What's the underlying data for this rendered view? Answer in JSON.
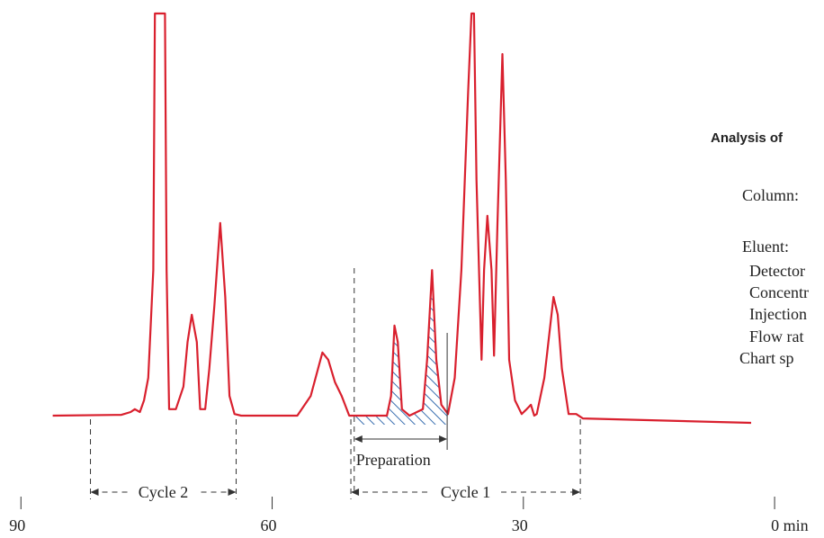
{
  "chart_data": {
    "type": "line",
    "color": "#d9202e",
    "xlim": [
      92.5,
      -5.9
    ],
    "ylim": [
      0,
      100
    ],
    "xticks": [
      90,
      60,
      30,
      {
        "value": 0,
        "label": "0 min"
      }
    ],
    "x": [
      86.2,
      78.0,
      76.9,
      76.4,
      75.8,
      75.3,
      74.8,
      74.2,
      74.0,
      72.8,
      72.6,
      72.3,
      71.5,
      70.6,
      70.1,
      69.6,
      69.0,
      68.6,
      68.0,
      67.5,
      66.9,
      66.2,
      65.6,
      65.1,
      64.5,
      63.7,
      57.0,
      55.4,
      54.0,
      53.3,
      52.5,
      51.7,
      50.8,
      46.3,
      45.8,
      45.4,
      45.0,
      44.5,
      43.6,
      42.0,
      41.5,
      40.9,
      40.4,
      39.8,
      39.0,
      38.2,
      37.4,
      36.6,
      36.2,
      35.9,
      35.6,
      35.0,
      34.7,
      34.3,
      33.8,
      33.5,
      33.1,
      32.5,
      32.1,
      31.7,
      31.0,
      30.2,
      29.6,
      29.1,
      28.7,
      28.4,
      27.5,
      26.4,
      25.9,
      25.4,
      24.6,
      23.7,
      22.9,
      2.8
    ],
    "values": [
      0,
      0.2,
      0.9,
      1.6,
      0.9,
      3.8,
      9.4,
      36.2,
      100,
      100,
      36.2,
      1.6,
      1.6,
      7.2,
      18.3,
      25.1,
      18.3,
      1.6,
      1.6,
      11.7,
      27.3,
      47.9,
      29.5,
      4.9,
      0.4,
      0,
      0,
      4.9,
      15.7,
      13.9,
      8.3,
      4.9,
      0,
      0,
      4.9,
      22.4,
      18.3,
      1.6,
      0,
      1.6,
      13.9,
      36.2,
      13.9,
      2.7,
      0.4,
      9.4,
      36.2,
      80.5,
      100,
      100,
      58.6,
      13.9,
      36.2,
      49.7,
      36.2,
      14.9,
      47.7,
      89.9,
      58.6,
      13.9,
      3.8,
      0.4,
      1.6,
      2.7,
      0,
      0.4,
      9.4,
      29.5,
      25.1,
      11.7,
      0.4,
      0.4,
      -0.7,
      -1.8
    ],
    "regions": [
      {
        "label": "Cycle 2",
        "range": [
          81.7,
          64.3
        ]
      },
      {
        "label": "Cycle 1",
        "range": [
          50.6,
          23.2
        ]
      },
      {
        "label": "Preparation",
        "range": [
          50.2,
          39.1
        ]
      }
    ],
    "annotations": [
      "Analysis of",
      "Column:",
      "Eluent:",
      "Detector",
      "Concentr",
      "Injection",
      "Flow rat",
      "Chart sp"
    ]
  }
}
